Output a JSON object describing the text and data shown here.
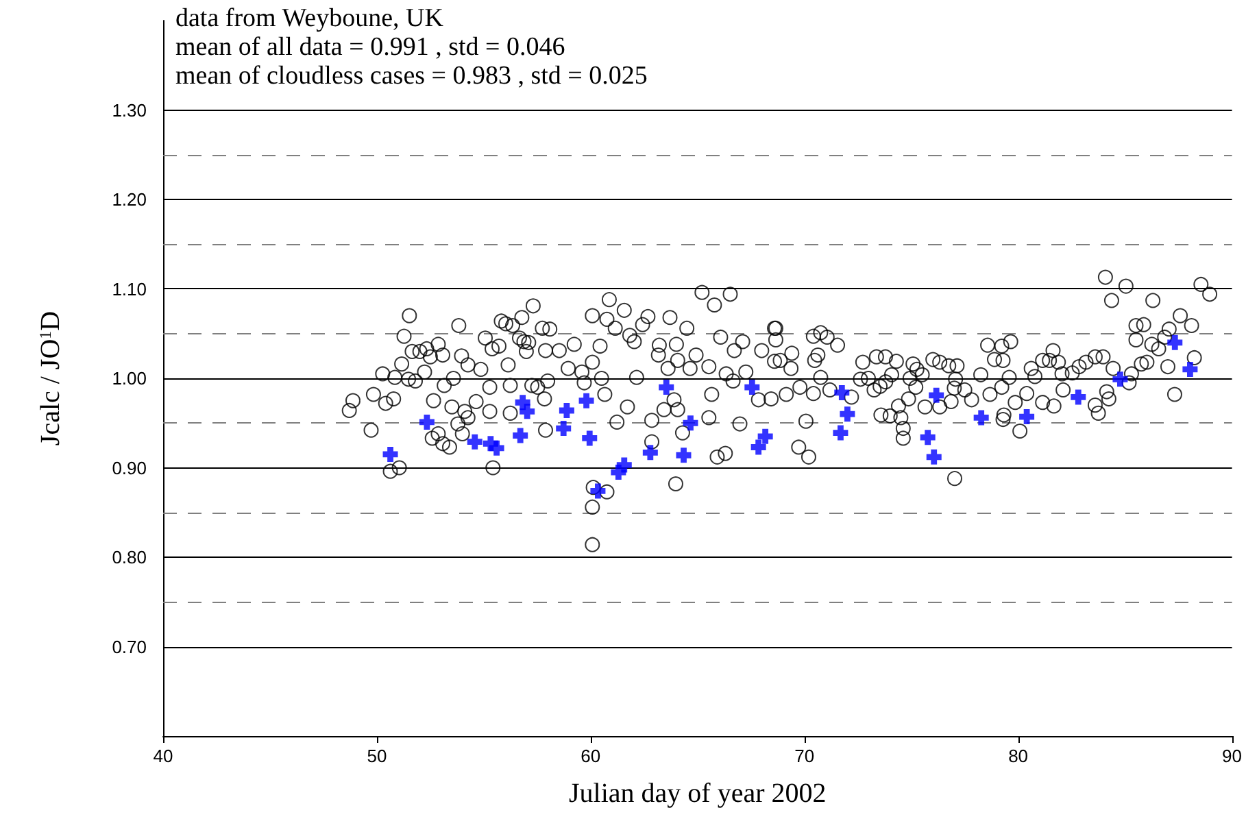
{
  "chart_data": {
    "type": "scatter",
    "xlabel": "Julian day of year 2002",
    "ylabel": "Jcalc / JO$^{1}$D",
    "annotations": [
      "data from Weyboune, UK",
      "mean of all data = 0.991 , std = 0.046",
      "mean of cloudless cases = 0.983 , std = 0.025"
    ],
    "xlim": [
      40,
      90
    ],
    "xticks": [
      40,
      50,
      60,
      70,
      80,
      90
    ],
    "ylim": [
      0.6,
      1.4
    ],
    "yticks": [
      {
        "value": 0.7,
        "label": "0.70"
      },
      {
        "value": 0.8,
        "label": "0.80"
      },
      {
        "value": 0.9,
        "label": "0.90"
      },
      {
        "value": 1.0,
        "label": "1.00"
      },
      {
        "value": 1.1,
        "label": "1.10"
      },
      {
        "value": 1.2,
        "label": "1.20"
      },
      {
        "value": 1.3,
        "label": "1.30"
      }
    ],
    "grid": "y",
    "ref_lines": [
      {
        "axis": "y",
        "value": 0.75,
        "color": "#808080",
        "line_style": "dashed"
      },
      {
        "axis": "y",
        "value": 0.85,
        "color": "#808080",
        "line_style": "dashed"
      },
      {
        "axis": "y",
        "value": 0.95,
        "color": "#808080",
        "line_style": "dashed"
      },
      {
        "axis": "y",
        "value": 1.05,
        "color": "#808080",
        "line_style": "dashed"
      },
      {
        "axis": "y",
        "value": 1.15,
        "color": "#808080",
        "line_style": "dashed"
      },
      {
        "axis": "y",
        "value": 1.25,
        "color": "#808080",
        "line_style": "dashed"
      }
    ],
    "series": [
      {
        "color": "#000000",
        "marker": "circle",
        "x": [
          48.71,
          48.88,
          49.73,
          49.84,
          50.27,
          50.41,
          50.78,
          50.63,
          51.05,
          51.27,
          51.52,
          51.16,
          50.84,
          51.48,
          51.8,
          51.65,
          52.01,
          52.33,
          52.5,
          52.23,
          52.87,
          53.08,
          52.65,
          52.59,
          52.87,
          53.08,
          53.4,
          53.51,
          53.15,
          53.58,
          53.83,
          53.96,
          54.26,
          54.11,
          53.79,
          54.0,
          54.26,
          54.64,
          54.86,
          55.07,
          55.28,
          55.39,
          55.28,
          55.43,
          55.71,
          55.82,
          56.03,
          56.14,
          56.24,
          56.35,
          56.67,
          56.78,
          56.99,
          56.88,
          57.25,
          57.1,
          57.31,
          57.74,
          57.89,
          57.84,
          57.89,
          56.24,
          57.52,
          57.99,
          58.09,
          58.53,
          58.95,
          59.23,
          59.59,
          59.7,
          60.08,
          60.08,
          60.51,
          60.66,
          60.44,
          60.76,
          60.87,
          61.15,
          61.57,
          61.83,
          62.04,
          61.72,
          61.23,
          62.15,
          62.43,
          62.68,
          63.21,
          63.17,
          63.71,
          64.01,
          64.07,
          63.62,
          63.9,
          64.07,
          63.43,
          62.86,
          62.86,
          64.3,
          63.98,
          64.5,
          64.65,
          64.93,
          65.21,
          65.79,
          66.53,
          65.53,
          65.66,
          65.53,
          66.08,
          66.34,
          66.66,
          66.98,
          65.92,
          66.3,
          66.72,
          67.11,
          67.26,
          68.0,
          68.6,
          67.85,
          68.44,
          68.6,
          60.08,
          60.08,
          60.12,
          60.76,
          68.66,
          68.66,
          68.87,
          69.41,
          69.37,
          69.15,
          69.79,
          69.73,
          70.2,
          70.07,
          70.42,
          70.76,
          71.06,
          71.55,
          70.63,
          70.48,
          70.76,
          70.42,
          71.19,
          72.2,
          72.73,
          72.62,
          72.99,
          73.37,
          73.79,
          73.54,
          73.26,
          73.8,
          74.3,
          74.08,
          74.4,
          74.51,
          74.62,
          74.62,
          73.58,
          74.01,
          74.94,
          75.08,
          75.26,
          75.21,
          74.87,
          75.51,
          75.64,
          76.01,
          76.33,
          76.75,
          77.14,
          77.07,
          76.33,
          76.86,
          77.01,
          77.5,
          77.82,
          78.25,
          78.57,
          78.68,
          78.89,
          77.03,
          79.23,
          79.29,
          79.23,
          79.33,
          79.29,
          80.08,
          79.65,
          79.58,
          79.86,
          80.4,
          80.61,
          80.78,
          81.14,
          81.46,
          81.63,
          81.88,
          82.05,
          81.14,
          81.67,
          82.1,
          82.53,
          82.85,
          83.17,
          83.6,
          83.97,
          84.14,
          84.24,
          83.6,
          83.75,
          84.08,
          85.04,
          84.37,
          84.44,
          85.19,
          85.3,
          85.51,
          85.51,
          85.87,
          86.3,
          86.25,
          86.57,
          86.85,
          87.06,
          85.76,
          86.02,
          87.0,
          87.32,
          87.58,
          88.11,
          88.24,
          88.55,
          88.96
        ],
        "values": [
          0.964,
          0.975,
          0.942,
          0.982,
          1.005,
          0.972,
          0.977,
          0.896,
          0.9,
          1.047,
          1.07,
          1.016,
          1.001,
          0.999,
          0.997,
          1.03,
          1.03,
          1.033,
          1.024,
          1.007,
          1.038,
          1.026,
          0.975,
          0.933,
          0.938,
          0.927,
          0.923,
          0.968,
          0.992,
          1.0,
          1.059,
          1.025,
          1.015,
          0.963,
          0.949,
          0.938,
          0.956,
          0.974,
          1.01,
          1.045,
          0.99,
          1.033,
          0.963,
          0.9,
          1.036,
          1.064,
          1.061,
          1.015,
          0.992,
          1.059,
          1.045,
          1.068,
          1.03,
          1.041,
          0.992,
          1.04,
          1.081,
          1.056,
          1.031,
          0.977,
          0.942,
          0.961,
          0.99,
          0.997,
          1.055,
          1.031,
          1.011,
          1.038,
          1.007,
          0.995,
          1.07,
          1.018,
          1.0,
          0.982,
          1.036,
          1.066,
          1.088,
          1.056,
          1.076,
          1.048,
          1.041,
          0.968,
          0.951,
          1.001,
          1.06,
          1.069,
          1.037,
          1.026,
          1.068,
          1.038,
          1.02,
          1.011,
          0.976,
          0.965,
          0.965,
          0.953,
          0.929,
          0.939,
          0.882,
          1.056,
          1.011,
          1.026,
          1.096,
          1.082,
          1.094,
          1.013,
          0.982,
          0.956,
          1.046,
          1.005,
          0.997,
          0.949,
          0.912,
          0.916,
          1.031,
          1.041,
          1.007,
          1.031,
          1.056,
          0.976,
          0.977,
          1.019,
          0.856,
          0.814,
          0.878,
          0.873,
          1.056,
          1.043,
          1.02,
          1.028,
          1.011,
          0.982,
          0.99,
          0.923,
          0.912,
          0.952,
          1.047,
          1.051,
          1.046,
          1.037,
          1.026,
          1.02,
          1.001,
          0.983,
          0.987,
          0.979,
          1.018,
          0.999,
          1.0,
          1.024,
          1.024,
          0.991,
          0.987,
          0.996,
          1.019,
          1.004,
          0.969,
          0.956,
          0.944,
          0.933,
          0.959,
          0.958,
          1.0,
          1.016,
          1.01,
          0.99,
          0.977,
          1.004,
          0.968,
          1.021,
          1.018,
          1.014,
          1.014,
          0.999,
          0.968,
          0.974,
          0.989,
          0.987,
          0.976,
          1.004,
          1.037,
          0.982,
          1.021,
          0.888,
          1.036,
          1.02,
          0.99,
          0.959,
          0.954,
          0.941,
          1.041,
          1.001,
          0.973,
          0.983,
          1.011,
          1.002,
          1.02,
          1.02,
          1.031,
          1.018,
          1.005,
          0.973,
          0.969,
          0.987,
          1.006,
          1.013,
          1.018,
          1.024,
          1.024,
          0.985,
          0.977,
          0.97,
          0.961,
          1.113,
          1.103,
          1.087,
          1.011,
          0.995,
          1.005,
          1.043,
          1.059,
          1.06,
          1.087,
          1.038,
          1.033,
          1.046,
          1.055,
          1.016,
          1.018,
          1.013,
          0.982,
          1.07,
          1.059,
          1.023,
          1.105,
          1.094
        ]
      },
      {
        "color": "#0000ff",
        "marker": "cross",
        "x": [
          50.63,
          52.34,
          54.58,
          55.32,
          55.6,
          56.71,
          56.82,
          57.03,
          58.88,
          58.73,
          59.8,
          59.95,
          60.34,
          61.3,
          61.57,
          62.79,
          63.54,
          64.67,
          64.35,
          67.55,
          67.85,
          68.17,
          71.75,
          72.01,
          71.69,
          76.17,
          75.77,
          76.06,
          78.27,
          80.4,
          82.81,
          84.77,
          87.33,
          88.04
        ],
        "values": [
          0.915,
          0.951,
          0.929,
          0.927,
          0.922,
          0.936,
          0.973,
          0.963,
          0.964,
          0.944,
          0.975,
          0.933,
          0.874,
          0.895,
          0.903,
          0.917,
          0.99,
          0.95,
          0.914,
          0.99,
          0.923,
          0.935,
          0.984,
          0.96,
          0.939,
          0.981,
          0.934,
          0.912,
          0.956,
          0.957,
          0.979,
          0.999,
          1.04,
          1.01
        ]
      }
    ]
  }
}
